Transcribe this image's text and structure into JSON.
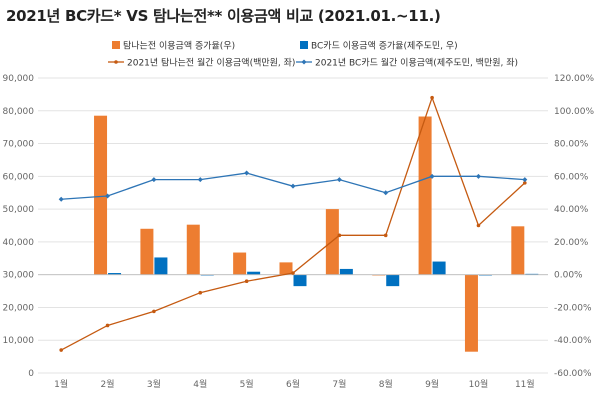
{
  "title": "2021년 BC카드* VS 탐나는전** 이용금액 비교 (2021.01.~11.)",
  "colors": {
    "orange": "#ED7D31",
    "blue": "#0070C0",
    "blue_line": "#2E75B6",
    "grid": "#E3E3E3"
  },
  "chart_data": {
    "type": "bar",
    "categories": [
      "1월",
      "2월",
      "3월",
      "4월",
      "5월",
      "6월",
      "7월",
      "8월",
      "9월",
      "10월",
      "11월"
    ],
    "series": [
      {
        "name": "탐나는전 이용금액 증가율(우)",
        "kind": "bar",
        "axis": "right",
        "color": "#ED7D31",
        "values": [
          null,
          97.0,
          28.0,
          30.5,
          13.5,
          7.5,
          40.0,
          0.0,
          96.5,
          -47.0,
          29.5
        ]
      },
      {
        "name": "BC카드 이용금액 증가율(제주도민, 우)",
        "kind": "bar",
        "axis": "right",
        "color": "#0070C0",
        "values": [
          null,
          1.0,
          10.5,
          0.0,
          1.8,
          -7.0,
          3.5,
          -7.0,
          8.0,
          -0.5,
          0.5
        ]
      },
      {
        "name": "2021년 탐나는전 월간 이용금액(백만원, 좌)",
        "kind": "line",
        "axis": "left",
        "color": "#C55A11",
        "values": [
          7000,
          14500,
          18800,
          24500,
          28000,
          30500,
          42000,
          42000,
          84000,
          45000,
          58000
        ]
      },
      {
        "name": "2021년 BC카드 월간 이용금액(제주도민, 백만원, 좌)",
        "kind": "line",
        "axis": "left",
        "color": "#2E75B6",
        "values": [
          53000,
          54000,
          59000,
          59000,
          61000,
          57000,
          59000,
          55000,
          60000,
          60000,
          59000
        ]
      }
    ],
    "y_left": {
      "min": 0,
      "max": 90000,
      "step": 10000,
      "ticks": [
        "0",
        "10,000",
        "20,000",
        "30,000",
        "40,000",
        "50,000",
        "60,000",
        "70,000",
        "80,000",
        "90,000"
      ]
    },
    "y_right": {
      "min": -60,
      "max": 120,
      "step": 20,
      "ticks": [
        "-60.00%",
        "-40.00%",
        "-20.00%",
        "0.00%",
        "20.00%",
        "40.00%",
        "60.00%",
        "80.00%",
        "100.00%",
        "120.00%"
      ]
    },
    "grid": true,
    "legend_position": "top"
  }
}
